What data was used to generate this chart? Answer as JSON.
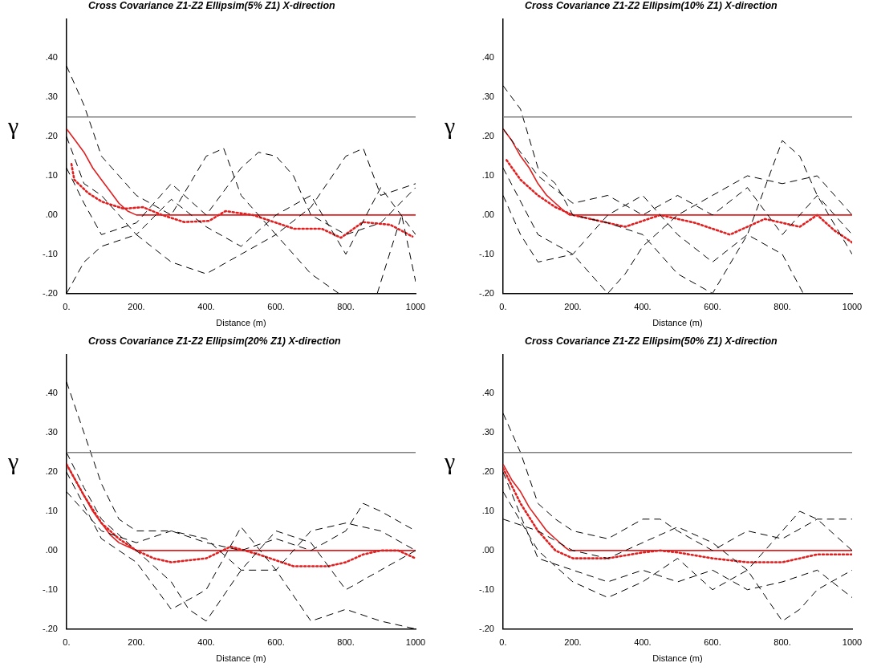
{
  "chart_data": [
    {
      "type": "line",
      "title": "Cross Covariance Z1-Z2 Ellipsim(5% Z1) X-direction",
      "xlabel": "Distance (m)",
      "ylabel": "γ",
      "xlim": [
        0,
        1000
      ],
      "ylim": [
        -0.2,
        0.5
      ],
      "xticks": [
        {
          "value": 0,
          "label": "0."
        },
        {
          "value": 200,
          "label": "200."
        },
        {
          "value": 400,
          "label": "400."
        },
        {
          "value": 600,
          "label": "600."
        },
        {
          "value": 800,
          "label": "800."
        },
        {
          "value": 1000,
          "label": "1000"
        }
      ],
      "yticks": [
        {
          "value": -0.2,
          "label": "-.20"
        },
        {
          "value": -0.1,
          "label": "-.10"
        },
        {
          "value": 0,
          "label": ".00"
        },
        {
          "value": 0.1,
          "label": ".10"
        },
        {
          "value": 0.2,
          "label": ".20"
        },
        {
          "value": 0.3,
          "label": ".30"
        },
        {
          "value": 0.4,
          "label": ".40"
        }
      ],
      "grid": false,
      "legend": false,
      "marker": "none",
      "ref_lines": [
        {
          "axis": "y",
          "value": 0.25,
          "color": "#808080"
        }
      ],
      "series": [
        {
          "color": "#000000",
          "line_style": "dashed",
          "x": [
            0,
            50,
            100,
            150,
            200,
            300,
            400,
            450,
            500,
            600,
            700,
            800,
            850,
            900,
            1000
          ],
          "values": [
            0.38,
            0.28,
            0.15,
            0.1,
            0.05,
            0.0,
            0.15,
            0.17,
            0.05,
            -0.05,
            0.02,
            0.15,
            0.17,
            0.05,
            0.08
          ]
        },
        {
          "color": "#000000",
          "line_style": "dashed",
          "x": [
            0,
            50,
            100,
            200,
            300,
            400,
            500,
            550,
            600,
            650,
            700,
            800,
            900,
            1000
          ],
          "values": [
            0.12,
            0.03,
            -0.05,
            -0.02,
            0.08,
            0.0,
            0.12,
            0.16,
            0.15,
            0.1,
            0.0,
            -0.05,
            -0.02,
            0.07
          ]
        },
        {
          "color": "#000000",
          "line_style": "dashed",
          "x": [
            0,
            50,
            100,
            200,
            300,
            400,
            500,
            600,
            700,
            780,
            840,
            890,
            960,
            1000
          ],
          "values": [
            -0.2,
            -0.12,
            -0.08,
            -0.05,
            -0.12,
            -0.15,
            -0.1,
            -0.05,
            -0.15,
            -0.2,
            null,
            -0.2,
            0.0,
            -0.17
          ]
        },
        {
          "color": "#000000",
          "line_style": "dashed",
          "x": [
            0,
            50,
            100,
            200,
            300,
            400,
            500,
            600,
            700,
            800,
            900,
            1000
          ],
          "values": [
            0.2,
            0.08,
            0.05,
            -0.05,
            0.04,
            -0.03,
            -0.08,
            0.0,
            0.05,
            -0.1,
            0.07,
            -0.05
          ]
        },
        {
          "color": "#e02020",
          "line_style": "solid",
          "x": [
            0,
            25,
            50,
            75,
            100,
            125,
            150,
            175,
            200,
            1000
          ],
          "values": [
            0.22,
            0.19,
            0.16,
            0.12,
            0.09,
            0.06,
            0.03,
            0.01,
            0.0,
            0.0
          ]
        },
        {
          "color": "#e02020",
          "line_style": "dotted",
          "x": [
            14,
            22,
            62,
            101,
            164,
            219,
            274,
            337,
            408,
            455,
            534,
            652,
            731,
            786,
            849,
            928,
            991
          ],
          "values": [
            0.13,
            0.09,
            0.056,
            0.034,
            0.016,
            0.02,
            0.0,
            -0.018,
            -0.015,
            0.01,
            0.0,
            -0.035,
            -0.035,
            -0.058,
            -0.018,
            -0.025,
            -0.055
          ]
        }
      ]
    },
    {
      "type": "line",
      "title": "Cross Covariance Z1-Z2 Ellipsim(10% Z1) X-direction",
      "xlabel": "Distance (m)",
      "ylabel": "γ",
      "xlim": [
        0,
        1000
      ],
      "ylim": [
        -0.2,
        0.5
      ],
      "xticks": [
        {
          "value": 0,
          "label": "0."
        },
        {
          "value": 200,
          "label": "200."
        },
        {
          "value": 400,
          "label": "400."
        },
        {
          "value": 600,
          "label": "600."
        },
        {
          "value": 800,
          "label": "800."
        },
        {
          "value": 1000,
          "label": "1000"
        }
      ],
      "yticks": [
        {
          "value": -0.2,
          "label": "-.20"
        },
        {
          "value": -0.1,
          "label": "-.10"
        },
        {
          "value": 0,
          "label": ".00"
        },
        {
          "value": 0.1,
          "label": ".10"
        },
        {
          "value": 0.2,
          "label": ".20"
        },
        {
          "value": 0.3,
          "label": ".30"
        },
        {
          "value": 0.4,
          "label": ".40"
        }
      ],
      "grid": false,
      "legend": false,
      "marker": "none",
      "ref_lines": [
        {
          "axis": "y",
          "value": 0.25,
          "color": "#808080"
        }
      ],
      "series": [
        {
          "color": "#000000",
          "line_style": "dashed",
          "x": [
            0,
            50,
            100,
            150,
            200,
            300,
            400,
            500,
            600,
            700,
            800,
            850,
            900,
            1000
          ],
          "values": [
            0.33,
            0.27,
            0.12,
            0.08,
            0.0,
            -0.02,
            -0.05,
            -0.15,
            -0.2,
            -0.05,
            0.19,
            0.15,
            0.05,
            -0.1
          ]
        },
        {
          "color": "#000000",
          "line_style": "dashed",
          "x": [
            0,
            100,
            200,
            300,
            350,
            400,
            500,
            600,
            700,
            800,
            900,
            1000
          ],
          "values": [
            0.12,
            -0.05,
            -0.1,
            -0.2,
            -0.15,
            -0.08,
            0.0,
            0.05,
            0.1,
            0.08,
            0.1,
            0.0
          ]
        },
        {
          "color": "#000000",
          "line_style": "dashed",
          "x": [
            0,
            50,
            100,
            200,
            300,
            400,
            500,
            600,
            700,
            800,
            860
          ],
          "values": [
            0.05,
            -0.05,
            -0.12,
            -0.1,
            0.0,
            0.05,
            -0.05,
            -0.12,
            -0.05,
            -0.1,
            -0.2
          ]
        },
        {
          "color": "#000000",
          "line_style": "dashed",
          "x": [
            0,
            100,
            200,
            300,
            400,
            500,
            600,
            700,
            800,
            900,
            1000
          ],
          "values": [
            0.22,
            0.1,
            0.03,
            0.05,
            0.0,
            0.05,
            0.0,
            0.07,
            -0.05,
            0.05,
            -0.05
          ]
        },
        {
          "color": "#e02020",
          "line_style": "solid",
          "x": [
            0,
            25,
            50,
            75,
            100,
            125,
            150,
            175,
            190,
            1000
          ],
          "values": [
            0.22,
            0.19,
            0.15,
            0.12,
            0.08,
            0.05,
            0.03,
            0.01,
            0.0,
            0.0
          ]
        },
        {
          "color": "#e02020",
          "line_style": "dotted",
          "x": [
            10,
            50,
            100,
            150,
            200,
            250,
            350,
            450,
            550,
            650,
            750,
            850,
            900,
            950,
            1000
          ],
          "values": [
            0.14,
            0.09,
            0.05,
            0.02,
            0.0,
            -0.01,
            -0.03,
            0.0,
            -0.02,
            -0.05,
            -0.01,
            -0.03,
            0.0,
            -0.04,
            -0.07
          ]
        }
      ]
    },
    {
      "type": "line",
      "title": "Cross Covariance Z1-Z2 Ellipsim(20% Z1) X-direction",
      "xlabel": "Distance (m)",
      "ylabel": "γ",
      "xlim": [
        0,
        1000
      ],
      "ylim": [
        -0.2,
        0.5
      ],
      "xticks": [
        {
          "value": 0,
          "label": "0."
        },
        {
          "value": 200,
          "label": "200."
        },
        {
          "value": 400,
          "label": "400."
        },
        {
          "value": 600,
          "label": "600."
        },
        {
          "value": 800,
          "label": "800."
        },
        {
          "value": 1000,
          "label": "1000"
        }
      ],
      "yticks": [
        {
          "value": -0.2,
          "label": "-.20"
        },
        {
          "value": -0.1,
          "label": "-.10"
        },
        {
          "value": 0,
          "label": ".00"
        },
        {
          "value": 0.1,
          "label": ".10"
        },
        {
          "value": 0.2,
          "label": ".20"
        },
        {
          "value": 0.3,
          "label": ".30"
        },
        {
          "value": 0.4,
          "label": ".40"
        }
      ],
      "grid": false,
      "legend": false,
      "marker": "none",
      "ref_lines": [
        {
          "axis": "y",
          "value": 0.25,
          "color": "#808080"
        }
      ],
      "series": [
        {
          "color": "#000000",
          "line_style": "dashed",
          "x": [
            0,
            50,
            100,
            150,
            200,
            300,
            400,
            500,
            600,
            700,
            800,
            850,
            900,
            1000
          ],
          "values": [
            0.43,
            0.3,
            0.17,
            0.08,
            0.05,
            0.05,
            0.02,
            0.0,
            0.03,
            0.0,
            0.05,
            0.12,
            0.1,
            0.05
          ]
        },
        {
          "color": "#000000",
          "line_style": "dashed",
          "x": [
            0,
            50,
            100,
            200,
            300,
            350,
            400,
            500,
            600,
            700,
            800,
            900,
            1000
          ],
          "values": [
            0.25,
            0.16,
            0.08,
            0.0,
            -0.08,
            -0.15,
            -0.18,
            -0.05,
            0.05,
            0.02,
            -0.1,
            -0.05,
            0.0
          ]
        },
        {
          "color": "#000000",
          "line_style": "dashed",
          "x": [
            0,
            100,
            200,
            300,
            400,
            500,
            600,
            700,
            800,
            900,
            1000
          ],
          "values": [
            0.2,
            0.03,
            -0.03,
            -0.15,
            -0.1,
            0.06,
            -0.05,
            -0.18,
            -0.15,
            -0.18,
            -0.2
          ]
        },
        {
          "color": "#000000",
          "line_style": "dashed",
          "x": [
            0,
            100,
            200,
            300,
            400,
            500,
            600,
            700,
            800,
            900,
            1000
          ],
          "values": [
            0.15,
            0.05,
            0.02,
            0.05,
            0.03,
            -0.05,
            -0.05,
            0.05,
            0.07,
            0.05,
            0.0
          ]
        },
        {
          "color": "#e02020",
          "line_style": "solid",
          "x": [
            0,
            25,
            50,
            75,
            100,
            125,
            150,
            175,
            200,
            1000
          ],
          "values": [
            0.22,
            0.18,
            0.14,
            0.1,
            0.07,
            0.04,
            0.02,
            0.01,
            0.0,
            0.0
          ]
        },
        {
          "color": "#e02020",
          "line_style": "dotted",
          "x": [
            0,
            50,
            100,
            150,
            200,
            250,
            300,
            400,
            470,
            550,
            650,
            750,
            800,
            850,
            900,
            950,
            1000
          ],
          "values": [
            0.22,
            0.14,
            0.07,
            0.03,
            0.0,
            -0.02,
            -0.03,
            -0.02,
            0.01,
            -0.01,
            -0.04,
            -0.04,
            -0.03,
            -0.01,
            0.0,
            0.0,
            -0.02
          ]
        }
      ]
    },
    {
      "type": "line",
      "title": "Cross Covariance Z1-Z2 Ellipsim(50% Z1) X-direction",
      "xlabel": "Distance (m)",
      "ylabel": "γ",
      "xlim": [
        0,
        1000
      ],
      "ylim": [
        -0.2,
        0.5
      ],
      "xticks": [
        {
          "value": 0,
          "label": "0."
        },
        {
          "value": 200,
          "label": "200."
        },
        {
          "value": 400,
          "label": "400."
        },
        {
          "value": 600,
          "label": "600."
        },
        {
          "value": 800,
          "label": "800."
        },
        {
          "value": 1000,
          "label": "1000"
        }
      ],
      "yticks": [
        {
          "value": -0.2,
          "label": "-.20"
        },
        {
          "value": -0.1,
          "label": "-.10"
        },
        {
          "value": 0,
          "label": ".00"
        },
        {
          "value": 0.1,
          "label": ".10"
        },
        {
          "value": 0.2,
          "label": ".20"
        },
        {
          "value": 0.3,
          "label": ".30"
        },
        {
          "value": 0.4,
          "label": ".40"
        }
      ],
      "grid": false,
      "legend": false,
      "marker": "none",
      "ref_lines": [
        {
          "axis": "y",
          "value": 0.25,
          "color": "#808080"
        }
      ],
      "series": [
        {
          "color": "#000000",
          "line_style": "dashed",
          "x": [
            0,
            50,
            100,
            150,
            200,
            300,
            400,
            450,
            500,
            600,
            700,
            800,
            900,
            1000
          ],
          "values": [
            0.35,
            0.25,
            0.12,
            0.08,
            0.05,
            0.03,
            0.08,
            0.08,
            0.05,
            0.0,
            0.05,
            0.03,
            0.08,
            0.08
          ]
        },
        {
          "color": "#000000",
          "line_style": "dashed",
          "x": [
            0,
            100,
            200,
            300,
            400,
            500,
            600,
            700,
            800,
            850,
            900,
            1000
          ],
          "values": [
            0.15,
            0.0,
            -0.08,
            -0.12,
            -0.08,
            -0.02,
            -0.1,
            -0.05,
            -0.18,
            -0.15,
            -0.1,
            -0.05
          ]
        },
        {
          "color": "#000000",
          "line_style": "dashed",
          "x": [
            0,
            100,
            200,
            300,
            400,
            500,
            600,
            700,
            800,
            850,
            900,
            1000
          ],
          "values": [
            0.08,
            0.05,
            0.0,
            -0.02,
            0.02,
            0.06,
            0.02,
            -0.05,
            0.05,
            0.1,
            0.08,
            0.0
          ]
        },
        {
          "color": "#000000",
          "line_style": "dashed",
          "x": [
            0,
            100,
            200,
            300,
            400,
            500,
            600,
            700,
            800,
            900,
            1000
          ],
          "values": [
            0.2,
            -0.02,
            -0.05,
            -0.08,
            -0.05,
            -0.08,
            -0.05,
            -0.1,
            -0.08,
            -0.05,
            -0.12
          ]
        },
        {
          "color": "#e02020",
          "line_style": "solid",
          "x": [
            0,
            25,
            50,
            75,
            100,
            125,
            150,
            175,
            190,
            1000
          ],
          "values": [
            0.22,
            0.18,
            0.15,
            0.11,
            0.08,
            0.05,
            0.03,
            0.01,
            0.0,
            0.0
          ]
        },
        {
          "color": "#e02020",
          "line_style": "dotted",
          "x": [
            0,
            50,
            100,
            150,
            200,
            300,
            400,
            450,
            500,
            600,
            700,
            800,
            850,
            900,
            1000
          ],
          "values": [
            0.21,
            0.12,
            0.05,
            0.0,
            -0.02,
            -0.02,
            -0.005,
            0.0,
            -0.005,
            -0.02,
            -0.03,
            -0.03,
            -0.02,
            -0.01,
            -0.01
          ]
        }
      ]
    }
  ]
}
